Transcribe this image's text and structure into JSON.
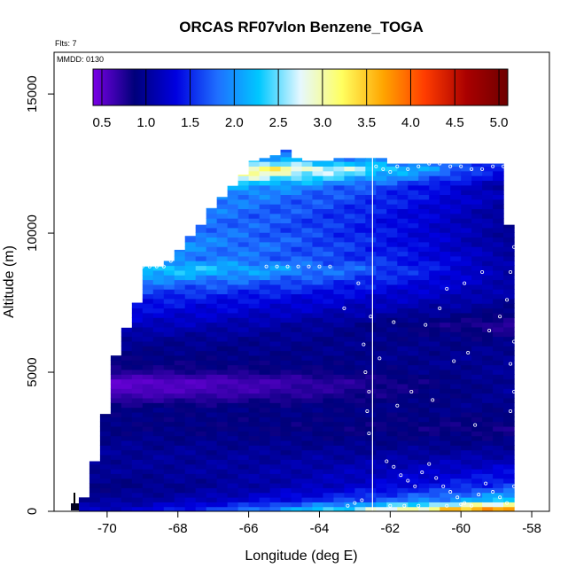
{
  "chart_data": {
    "type": "heatmap",
    "title": "ORCAS RF07vlon Benzene_TOGA",
    "notes": [
      "Flts: 7",
      "MMDD: 0130"
    ],
    "xlabel": "Longitude (deg E)",
    "ylabel": "Altitude (m)",
    "xlim": [
      -71.5,
      -57.5
    ],
    "ylim": [
      0,
      16500
    ],
    "xticks": [
      -70,
      -68,
      -66,
      -64,
      -62,
      -60,
      -58
    ],
    "yticks": [
      0,
      5000,
      10000,
      15000
    ],
    "colorbar": {
      "ticks": [
        0.5,
        1.0,
        1.5,
        2.0,
        2.5,
        3.0,
        3.5,
        4.0,
        4.5,
        5.0
      ],
      "tick_labels": [
        "0.5",
        "1.0",
        "1.5",
        "2.0",
        "2.5",
        "3.0",
        "3.5",
        "4.0",
        "4.5",
        "5.0"
      ],
      "range": [
        0.4,
        5.1
      ],
      "stops": [
        "#7a00e6",
        "#00007a",
        "#0000e0",
        "#1f6fff",
        "#00c8ff",
        "#e6f8ff",
        "#ffff60",
        "#ffa500",
        "#ff3c00",
        "#aa0000",
        "#6e0000"
      ],
      "position": "top"
    },
    "vertical_line_x": -62.5,
    "x_cells": [
      -70.65,
      -70.35,
      -70.05,
      -69.75,
      -69.45,
      -69.15,
      -68.85,
      -68.55,
      -68.25,
      -67.95,
      -67.65,
      -67.35,
      -67.05,
      -66.75,
      -66.45,
      -66.15,
      -65.85,
      -65.55,
      -65.25,
      -64.95,
      -64.65,
      -64.35,
      -64.05,
      -63.75,
      -63.45,
      -63.15,
      -62.85,
      -62.55,
      -62.25,
      -61.95,
      -61.65,
      -61.35,
      -61.05,
      -60.75,
      -60.45,
      -60.15,
      -59.85,
      -59.55,
      -59.25,
      -58.95,
      -58.65
    ],
    "top_altitude": [
      500,
      1800,
      3500,
      5600,
      6600,
      7500,
      8800,
      8800,
      9000,
      9400,
      9900,
      10300,
      10900,
      11300,
      11700,
      12100,
      12600,
      12700,
      12800,
      13000,
      12700,
      12600,
      12600,
      12600,
      12700,
      12700,
      12700,
      12700,
      12700,
      12500,
      12500,
      12500,
      12500,
      12500,
      12500,
      12500,
      12500,
      12500,
      12500,
      12500,
      10300
    ],
    "profile": {
      "altitude": [
        0,
        400,
        900,
        1500,
        2200,
        3000,
        3700,
        4300,
        4700,
        5100,
        5600,
        6200,
        6700,
        7200,
        7700,
        8200,
        8700,
        9100,
        9600,
        10200,
        10800,
        11300,
        11700,
        12000,
        12300,
        12600,
        13000
      ],
      "west_value": [
        1.2,
        1.0,
        0.9,
        1.0,
        1.0,
        0.9,
        0.9,
        0.55,
        0.5,
        0.8,
        0.9,
        1.0,
        1.2,
        1.35,
        1.5,
        1.85,
        2.45,
        2.0,
        2.05,
        1.95,
        2.0,
        2.1,
        2.4,
        3.1,
        3.85,
        2.5,
        2.0
      ],
      "east_value": [
        4.4,
        2.3,
        1.6,
        1.3,
        1.0,
        0.8,
        0.95,
        1.0,
        1.0,
        1.0,
        1.0,
        0.9,
        0.7,
        0.9,
        1.05,
        1.1,
        1.05,
        1.1,
        1.0,
        1.0,
        1.0,
        1.1,
        1.0,
        1.2,
        1.3,
        1.5,
        1.4
      ]
    },
    "sample_points": [
      [
        -70.85,
        450
      ],
      [
        -70.75,
        1000
      ],
      [
        -70.6,
        1800
      ],
      [
        -70.5,
        2600
      ],
      [
        -70.45,
        3400
      ],
      [
        -70.1,
        5600
      ],
      [
        -69.95,
        6700
      ],
      [
        -69.8,
        7500
      ],
      [
        -69.6,
        8000
      ],
      [
        -69.4,
        8700
      ],
      [
        -69.2,
        8800
      ],
      [
        -69.0,
        8800
      ],
      [
        -68.8,
        8800
      ],
      [
        -68.6,
        8800
      ],
      [
        -68.4,
        8800
      ],
      [
        -68.2,
        9000
      ],
      [
        -67.9,
        9700
      ],
      [
        -67.6,
        10400
      ],
      [
        -67.2,
        11300
      ],
      [
        -66.8,
        12300
      ],
      [
        -66.5,
        12400
      ],
      [
        -66.1,
        12600
      ],
      [
        -65.8,
        12700
      ],
      [
        -65.5,
        8800
      ],
      [
        -65.2,
        8800
      ],
      [
        -64.9,
        8800
      ],
      [
        -64.6,
        8800
      ],
      [
        -64.3,
        8800
      ],
      [
        -64.0,
        8800
      ],
      [
        -63.7,
        8800
      ],
      [
        -63.3,
        7300
      ],
      [
        -62.9,
        8200
      ],
      [
        -62.75,
        6000
      ],
      [
        -62.7,
        5000
      ],
      [
        -62.65,
        3600
      ],
      [
        -62.6,
        2800
      ],
      [
        -62.55,
        7000
      ],
      [
        -62.4,
        12400
      ],
      [
        -62.2,
        12300
      ],
      [
        -62.0,
        12200
      ],
      [
        -61.8,
        12400
      ],
      [
        -61.5,
        12300
      ],
      [
        -61.2,
        12400
      ],
      [
        -60.9,
        12500
      ],
      [
        -60.6,
        12500
      ],
      [
        -60.3,
        12400
      ],
      [
        -60.0,
        12400
      ],
      [
        -59.7,
        12300
      ],
      [
        -59.4,
        12300
      ],
      [
        -59.1,
        12400
      ],
      [
        -58.8,
        12400
      ],
      [
        -58.6,
        11000
      ],
      [
        -58.5,
        9500
      ],
      [
        -58.6,
        8600
      ],
      [
        -58.7,
        7600
      ],
      [
        -58.5,
        6100
      ],
      [
        -58.6,
        5300
      ],
      [
        -58.5,
        4300
      ],
      [
        -58.6,
        3600
      ],
      [
        -62.1,
        1800
      ],
      [
        -61.9,
        1600
      ],
      [
        -61.7,
        1300
      ],
      [
        -61.5,
        1100
      ],
      [
        -61.3,
        900
      ],
      [
        -61.1,
        1400
      ],
      [
        -60.9,
        1700
      ],
      [
        -60.7,
        1200
      ],
      [
        -60.5,
        900
      ],
      [
        -60.3,
        700
      ],
      [
        -60.1,
        500
      ],
      [
        -59.9,
        300
      ],
      [
        -59.7,
        200
      ],
      [
        -59.5,
        600
      ],
      [
        -59.3,
        1000
      ],
      [
        -59.1,
        700
      ],
      [
        -58.9,
        500
      ],
      [
        -58.7,
        300
      ],
      [
        -58.5,
        900
      ],
      [
        -61.2,
        200
      ],
      [
        -61.6,
        200
      ],
      [
        -62.0,
        200
      ],
      [
        -60.4,
        200
      ],
      [
        -60.0,
        250
      ],
      [
        -63.2,
        200
      ],
      [
        -63.0,
        300
      ],
      [
        -62.8,
        400
      ],
      [
        -61.4,
        4300
      ],
      [
        -61.8,
        3800
      ],
      [
        -60.8,
        4000
      ],
      [
        -60.2,
        5400
      ],
      [
        -59.8,
        5700
      ],
      [
        -59.6,
        3100
      ],
      [
        -61.0,
        6700
      ],
      [
        -60.6,
        7300
      ],
      [
        -62.3,
        5500
      ],
      [
        -61.9,
        6800
      ],
      [
        -60.4,
        8000
      ],
      [
        -59.9,
        8200
      ],
      [
        -59.4,
        8600
      ],
      [
        -59.2,
        6500
      ],
      [
        -58.9,
        7000
      ],
      [
        -62.6,
        4300
      ]
    ]
  }
}
